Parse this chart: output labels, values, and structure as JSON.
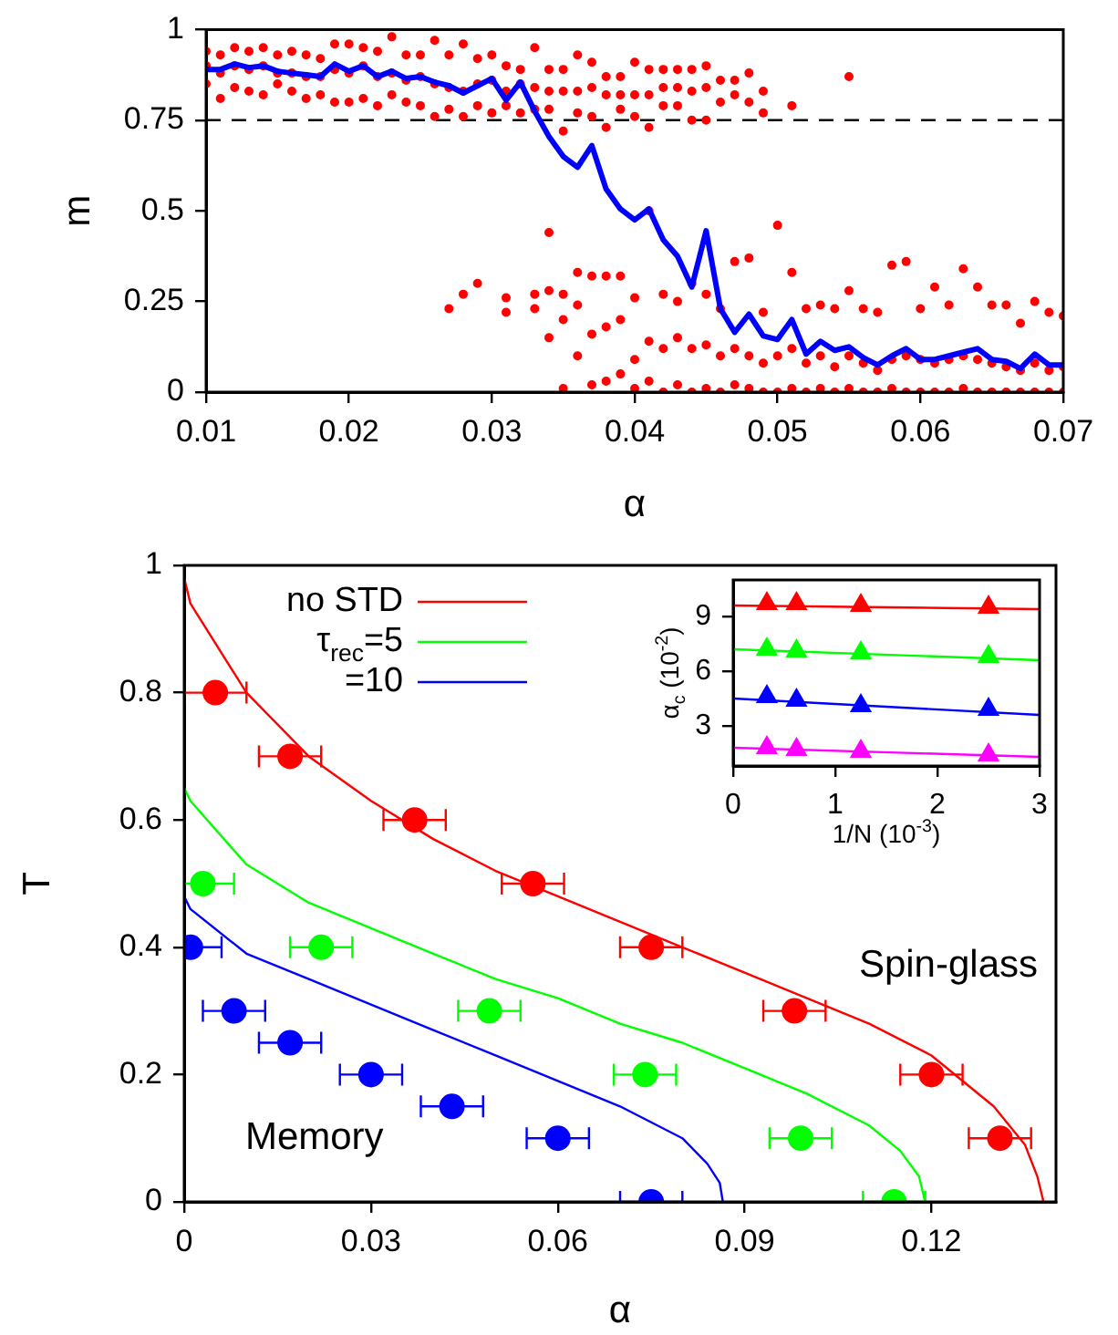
{
  "chart_data": [
    {
      "type": "scatter",
      "xlabel": "α",
      "ylabel": "m",
      "xlim": [
        0.01,
        0.07
      ],
      "ylim": [
        0,
        1
      ],
      "xticks": [
        0.01,
        0.02,
        0.03,
        0.04,
        0.05,
        0.06,
        0.07
      ],
      "yticks": [
        0,
        0.25,
        0.5,
        0.75,
        1
      ],
      "grid": false,
      "ref_lines": [
        {
          "axis": "y",
          "value": 0.75,
          "color": "#000000",
          "line_style": "dashed"
        }
      ],
      "series": [
        {
          "color": "#ff0000",
          "marker": "circle",
          "x": [
            0.01,
            0.01,
            0.01,
            0.011,
            0.011,
            0.011,
            0.012,
            0.012,
            0.012,
            0.013,
            0.013,
            0.013,
            0.014,
            0.014,
            0.014,
            0.015,
            0.015,
            0.015,
            0.016,
            0.016,
            0.016,
            0.017,
            0.017,
            0.017,
            0.018,
            0.018,
            0.018,
            0.019,
            0.019,
            0.019,
            0.02,
            0.02,
            0.02,
            0.021,
            0.021,
            0.021,
            0.022,
            0.022,
            0.022,
            0.023,
            0.023,
            0.023,
            0.024,
            0.024,
            0.024,
            0.025,
            0.025,
            0.025,
            0.026,
            0.026,
            0.026,
            0.027,
            0.027,
            0.027,
            0.028,
            0.028,
            0.028,
            0.029,
            0.029,
            0.029,
            0.03,
            0.03,
            0.03,
            0.031,
            0.031,
            0.031,
            0.032,
            0.032,
            0.032,
            0.033,
            0.033,
            0.033,
            0.034,
            0.034,
            0.034,
            0.035,
            0.035,
            0.035,
            0.036,
            0.036,
            0.036,
            0.037,
            0.037,
            0.037,
            0.038,
            0.038,
            0.038,
            0.039,
            0.039,
            0.039,
            0.04,
            0.04,
            0.04,
            0.041,
            0.041,
            0.041,
            0.042,
            0.042,
            0.042,
            0.043,
            0.043,
            0.043,
            0.044,
            0.044,
            0.044,
            0.045,
            0.045,
            0.045,
            0.046,
            0.046,
            0.047,
            0.047,
            0.048,
            0.048,
            0.049,
            0.049,
            0.051,
            0.055
          ],
          "values": [
            0.85,
            0.9,
            0.94,
            0.81,
            0.88,
            0.93,
            0.84,
            0.9,
            0.95,
            0.83,
            0.89,
            0.94,
            0.82,
            0.9,
            0.95,
            0.85,
            0.88,
            0.93,
            0.83,
            0.88,
            0.94,
            0.81,
            0.87,
            0.93,
            0.82,
            0.87,
            0.92,
            0.8,
            0.89,
            0.96,
            0.8,
            0.88,
            0.96,
            0.81,
            0.9,
            0.95,
            0.79,
            0.87,
            0.94,
            0.82,
            0.88,
            0.98,
            0.8,
            0.86,
            0.93,
            0.79,
            0.87,
            0.93,
            0.76,
            0.85,
            0.97,
            0.78,
            0.84,
            0.93,
            0.76,
            0.83,
            0.96,
            0.79,
            0.85,
            0.92,
            0.77,
            0.86,
            0.93,
            0.79,
            0.83,
            0.9,
            0.77,
            0.85,
            0.89,
            0.78,
            0.84,
            0.95,
            0.78,
            0.83,
            0.89,
            0.72,
            0.83,
            0.89,
            0.77,
            0.83,
            0.93,
            0.76,
            0.84,
            0.91,
            0.73,
            0.82,
            0.87,
            0.78,
            0.82,
            0.87,
            0.76,
            0.82,
            0.91,
            0.73,
            0.82,
            0.89,
            0.79,
            0.84,
            0.89,
            0.79,
            0.84,
            0.89,
            0.75,
            0.83,
            0.89,
            0.75,
            0.84,
            0.9,
            0.8,
            0.86,
            0.82,
            0.86,
            0.8,
            0.88,
            0.77,
            0.83,
            0.79,
            0.87
          ]
        },
        {
          "color": "#ff0000",
          "marker": "circle",
          "x": [
            0.027,
            0.028,
            0.029,
            0.031,
            0.031,
            0.033,
            0.033,
            0.034,
            0.034,
            0.034,
            0.035,
            0.035,
            0.035,
            0.036,
            0.036,
            0.036,
            0.037,
            0.037,
            0.037,
            0.038,
            0.038,
            0.038,
            0.039,
            0.039,
            0.039,
            0.04,
            0.04,
            0.04,
            0.041,
            0.041,
            0.041,
            0.042,
            0.042,
            0.042,
            0.043,
            0.043,
            0.043,
            0.044,
            0.044,
            0.044,
            0.045,
            0.045,
            0.045,
            0.046,
            0.046,
            0.046,
            0.047,
            0.047,
            0.047,
            0.048,
            0.048,
            0.048,
            0.049,
            0.049,
            0.049,
            0.05,
            0.05,
            0.05,
            0.051,
            0.051,
            0.051,
            0.052,
            0.052,
            0.052,
            0.053,
            0.053,
            0.053,
            0.054,
            0.054,
            0.054,
            0.055,
            0.055,
            0.055,
            0.056,
            0.056,
            0.056,
            0.057,
            0.057,
            0.057,
            0.058,
            0.058,
            0.058,
            0.059,
            0.059,
            0.059,
            0.06,
            0.06,
            0.06,
            0.061,
            0.061,
            0.061,
            0.062,
            0.062,
            0.062,
            0.063,
            0.063,
            0.063,
            0.064,
            0.064,
            0.064,
            0.065,
            0.065,
            0.065,
            0.066,
            0.066,
            0.066,
            0.067,
            0.067,
            0.067,
            0.068,
            0.068,
            0.068,
            0.069,
            0.069,
            0.069,
            0.07,
            0.07,
            0.07
          ],
          "values": [
            0.23,
            0.27,
            0.3,
            0.22,
            0.26,
            0.23,
            0.27,
            0.15,
            0.28,
            0.44,
            0.01,
            0.2,
            0.27,
            0.1,
            0.24,
            0.33,
            0.02,
            0.16,
            0.32,
            0.03,
            0.18,
            0.32,
            0.05,
            0.2,
            0.32,
            0.01,
            0.09,
            0.26,
            0.03,
            0.14,
            0.5,
            0,
            0.12,
            0.27,
            0.02,
            0.15,
            0.25,
            0,
            0.12,
            0.3,
            0.01,
            0.13,
            0.27,
            0,
            0.1,
            0.23,
            0.02,
            0.12,
            0.36,
            0.01,
            0.1,
            0.37,
            0,
            0.08,
            0.22,
            0,
            0.1,
            0.46,
            0.01,
            0.12,
            0.33,
            0,
            0.08,
            0.23,
            0.01,
            0.1,
            0.24,
            0,
            0.07,
            0.23,
            0.01,
            0.1,
            0.28,
            0,
            0.08,
            0.23,
            0,
            0.06,
            0.22,
            0.01,
            0.09,
            0.35,
            0,
            0.1,
            0.36,
            0,
            0.09,
            0.23,
            0,
            0.08,
            0.29,
            0,
            0.09,
            0.24,
            0.01,
            0.1,
            0.34,
            0,
            0.09,
            0.29,
            0,
            0.08,
            0.24,
            0,
            0.07,
            0.24,
            0,
            0.06,
            0.19,
            0,
            0.08,
            0.25,
            0,
            0.06,
            0.22,
            0,
            0.07,
            0.21
          ]
        },
        {
          "type": "line",
          "color": "#0000ff",
          "marker": "none",
          "x": [
            0.01,
            0.011,
            0.012,
            0.013,
            0.014,
            0.015,
            0.016,
            0.017,
            0.018,
            0.019,
            0.02,
            0.021,
            0.022,
            0.023,
            0.024,
            0.025,
            0.026,
            0.027,
            0.028,
            0.029,
            0.03,
            0.031,
            0.032,
            0.033,
            0.034,
            0.035,
            0.036,
            0.037,
            0.038,
            0.039,
            0.04,
            0.041,
            0.042,
            0.043,
            0.044,
            0.045,
            0.046,
            0.047,
            0.048,
            0.049,
            0.05,
            0.051,
            0.052,
            0.053,
            0.054,
            0.055,
            0.056,
            0.057,
            0.058,
            0.059,
            0.06,
            0.061,
            0.062,
            0.063,
            0.064,
            0.065,
            0.066,
            0.067,
            0.068,
            0.069,
            0.07
          ],
          "values": [
            0.89,
            0.89,
            0.905,
            0.895,
            0.9,
            0.885,
            0.88,
            0.875,
            0.87,
            0.905,
            0.885,
            0.9,
            0.87,
            0.885,
            0.865,
            0.87,
            0.855,
            0.845,
            0.825,
            0.845,
            0.865,
            0.805,
            0.855,
            0.775,
            0.705,
            0.65,
            0.62,
            0.68,
            0.56,
            0.505,
            0.475,
            0.505,
            0.42,
            0.375,
            0.29,
            0.445,
            0.23,
            0.165,
            0.215,
            0.155,
            0.145,
            0.2,
            0.105,
            0.14,
            0.115,
            0.125,
            0.095,
            0.075,
            0.1,
            0.12,
            0.09,
            0.09,
            0.1,
            0.11,
            0.12,
            0.09,
            0.085,
            0.065,
            0.105,
            0.075,
            0.075
          ]
        }
      ]
    },
    {
      "type": "line",
      "xlabel": "α",
      "ylabel": "T",
      "xlim": [
        0,
        0.14
      ],
      "ylim": [
        0,
        1
      ],
      "xticks": [
        0,
        0.03,
        0.06,
        0.09,
        0.12
      ],
      "yticks": [
        0,
        0.2,
        0.4,
        0.6,
        0.8,
        1
      ],
      "grid": false,
      "legend": "top left",
      "annotations": [
        "Spin-glass",
        "Memory"
      ],
      "series": [
        {
          "name": "no STD",
          "color": "#ff0000",
          "marker": "none",
          "x": [
            0,
            0.001,
            0.01,
            0.02,
            0.03,
            0.04,
            0.05,
            0.06,
            0.07,
            0.08,
            0.09,
            0.1,
            0.11,
            0.12,
            0.13,
            0.135,
            0.137,
            0.138
          ],
          "values": [
            0.98,
            0.94,
            0.8,
            0.7,
            0.63,
            0.57,
            0.52,
            0.48,
            0.44,
            0.4,
            0.36,
            0.32,
            0.28,
            0.23,
            0.15,
            0.09,
            0.04,
            0
          ]
        },
        {
          "name": "τ$_{rec}$=5",
          "color": "#00ff00",
          "marker": "none",
          "x": [
            0,
            0.001,
            0.01,
            0.02,
            0.03,
            0.04,
            0.05,
            0.06,
            0.07,
            0.08,
            0.09,
            0.1,
            0.11,
            0.115,
            0.118,
            0.119
          ],
          "values": [
            0.65,
            0.63,
            0.53,
            0.47,
            0.43,
            0.39,
            0.35,
            0.32,
            0.28,
            0.25,
            0.21,
            0.17,
            0.12,
            0.08,
            0.04,
            0
          ]
        },
        {
          "name": "=10",
          "color": "#0000ff",
          "marker": "none",
          "x": [
            0,
            0.001,
            0.01,
            0.02,
            0.03,
            0.04,
            0.05,
            0.06,
            0.07,
            0.08,
            0.084,
            0.086,
            0.0865
          ],
          "values": [
            0.48,
            0.46,
            0.39,
            0.35,
            0.31,
            0.27,
            0.23,
            0.19,
            0.15,
            0.1,
            0.06,
            0.03,
            0
          ]
        },
        {
          "type": "scatter",
          "color": "#ff0000",
          "marker": "circle",
          "x": [
            0.005,
            0.017,
            0.037,
            0.056,
            0.075,
            0.098,
            0.12,
            0.131
          ],
          "values": [
            0.8,
            0.7,
            0.6,
            0.5,
            0.4,
            0.3,
            0.2,
            0.1
          ],
          "xerrors": [
            0.005,
            0.005,
            0.005,
            0.005,
            0.005,
            0.005,
            0.005,
            0.005
          ]
        },
        {
          "type": "scatter",
          "color": "#00ff00",
          "marker": "circle",
          "x": [
            0.003,
            0.022,
            0.049,
            0.074,
            0.099,
            0.114
          ],
          "values": [
            0.5,
            0.4,
            0.3,
            0.2,
            0.1,
            0
          ],
          "xerrors": [
            0.005,
            0.005,
            0.005,
            0.005,
            0.005,
            0.005
          ]
        },
        {
          "type": "scatter",
          "color": "#0000ff",
          "marker": "circle",
          "x": [
            0.001,
            0.008,
            0.017,
            0.03,
            0.043,
            0.06,
            0.075
          ],
          "values": [
            0.4,
            0.3,
            0.25,
            0.2,
            0.15,
            0.1,
            0
          ],
          "xerrors": [
            0.005,
            0.005,
            0.005,
            0.005,
            0.005,
            0.005,
            0.005
          ]
        }
      ]
    },
    {
      "type": "scatter",
      "xlabel": "1/N (10$^{-3}$)",
      "ylabel": "α$_{c}$ (10$^{-2}$)",
      "xlim": [
        0,
        3
      ],
      "ylim": [
        0.8,
        11
      ],
      "xticks": [
        0,
        1,
        2,
        3
      ],
      "yticks": [
        3,
        6,
        9
      ],
      "grid": false,
      "series": [
        {
          "color": "#ff0000",
          "marker": "triangle",
          "x": [
            0.33,
            0.62,
            1.25,
            2.5
          ],
          "values": [
            9.7,
            9.7,
            9.6,
            9.5
          ]
        },
        {
          "color": "#00ff00",
          "marker": "triangle",
          "x": [
            0.33,
            0.62,
            1.25,
            2.5
          ],
          "values": [
            7.2,
            7.1,
            7.0,
            6.8
          ]
        },
        {
          "color": "#0000ff",
          "marker": "triangle",
          "x": [
            0.33,
            0.62,
            1.25,
            2.5
          ],
          "values": [
            4.6,
            4.4,
            4.1,
            3.9
          ]
        },
        {
          "color": "#ff00ff",
          "marker": "triangle",
          "x": [
            0.33,
            0.62,
            1.25,
            2.5
          ],
          "values": [
            1.8,
            1.7,
            1.6,
            1.4
          ]
        },
        {
          "type": "line",
          "color": "#ff0000",
          "marker": "none",
          "x": [
            0,
            3
          ],
          "values": [
            9.6,
            9.4
          ]
        },
        {
          "type": "line",
          "color": "#00ff00",
          "marker": "none",
          "x": [
            0,
            3
          ],
          "values": [
            7.2,
            6.6
          ]
        },
        {
          "type": "line",
          "color": "#0000ff",
          "marker": "none",
          "x": [
            0,
            3
          ],
          "values": [
            4.5,
            3.6
          ]
        },
        {
          "type": "line",
          "color": "#ff00ff",
          "marker": "none",
          "x": [
            0,
            3
          ],
          "values": [
            1.8,
            1.3
          ]
        }
      ]
    }
  ]
}
